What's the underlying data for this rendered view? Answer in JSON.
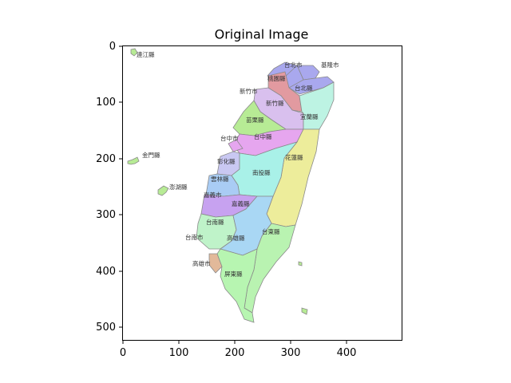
{
  "title": "Original Image",
  "axes": {
    "x_ticks": [
      "0",
      "100",
      "200",
      "300",
      "400"
    ],
    "y_ticks": [
      "0",
      "100",
      "200",
      "300",
      "400",
      "500"
    ]
  },
  "labels": {
    "lianjiang": "連江縣",
    "kinmen": "金門縣",
    "penghu": "澎湖縣",
    "taipei_city": "台北市",
    "keelung": "基隆市",
    "taoyuan": "桃園縣",
    "taipei_county": "台北縣",
    "hsinchu_city": "新竹市",
    "hsinchu_county": "新竹縣",
    "yilan": "宜蘭縣",
    "miaoli": "苗栗縣",
    "taichung_city": "台中市",
    "taichung_county": "台中縣",
    "changhua": "彰化縣",
    "hualien": "花蓮縣",
    "nantou": "南投縣",
    "yunlin": "雲林縣",
    "chiayi_city": "嘉義市",
    "chiayi_county": "嘉義縣",
    "tainan_county": "台南縣",
    "tainan_city": "台南市",
    "kaohsiung_county": "高雄縣",
    "taitung": "台東縣",
    "kaohsiung_city": "高雄市",
    "pingtung": "屏東縣"
  },
  "colors": {
    "taipei_city": "#a9a8ee",
    "keelung": "#a9a8ee",
    "taoyuan": "#e29aa0",
    "taipei_county": "#a9a8ee",
    "hsinchu": "#d9c0ee",
    "yilan": "#bdf3e3",
    "miaoli": "#b7eb95",
    "taichung_county": "#e6a6ef",
    "taichung_city": "#e6a6ef",
    "changhua": "#c9c8f2",
    "hualien": "#eded9b",
    "nantou": "#a9f1e8",
    "yunlin": "#a9ccf4",
    "chiayi": "#c7a2f0",
    "tainan": "#bff3c9",
    "kaohsiung_county": "#a9d7f4",
    "taitung": "#b9f3b1",
    "kaohsiung_city": "#e2b99a",
    "pingtung": "#b7f5b1",
    "islands": "#b7eb95"
  }
}
